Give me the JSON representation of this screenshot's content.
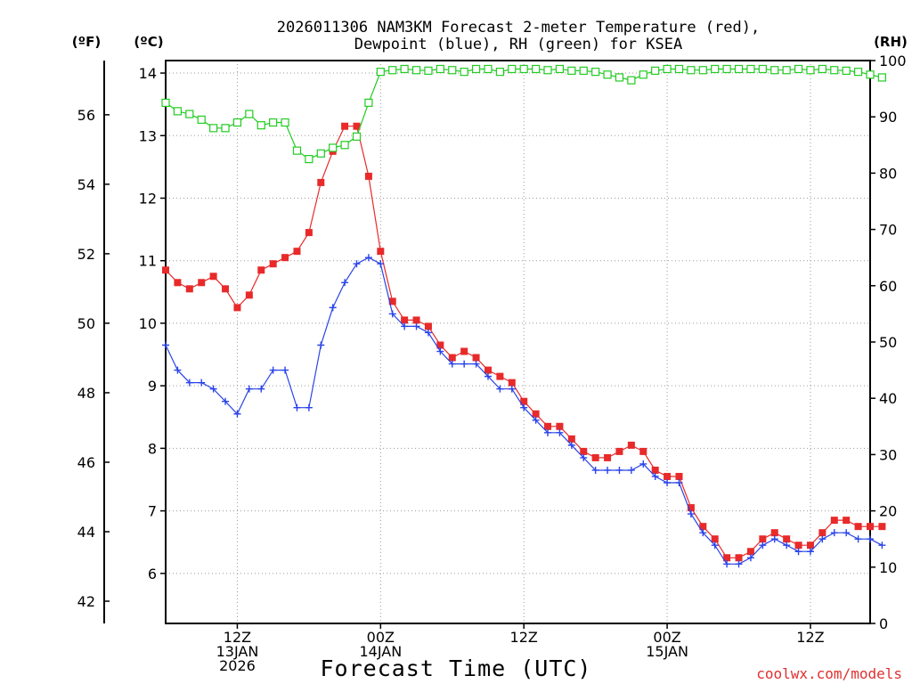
{
  "chart_data": {
    "type": "line",
    "title_lines": [
      "2026011306 NAM3KM Forecast 2-meter Temperature (red),",
      "Dewpoint (blue), RH (green) for KSEA"
    ],
    "xlabel": "Forecast Time (UTC)",
    "credit": "coolwx.com/models",
    "units": {
      "f": "(ºF)",
      "c": "(ºC)",
      "rh": "(RH)"
    },
    "x_start_hour": 6,
    "x_end_hour": 65,
    "x_ticks": [
      {
        "hour": 12,
        "lines": [
          "12Z",
          "13JAN",
          "2026"
        ]
      },
      {
        "hour": 24,
        "lines": [
          "00Z",
          "14JAN"
        ]
      },
      {
        "hour": 36,
        "lines": [
          "12Z"
        ]
      },
      {
        "hour": 48,
        "lines": [
          "00Z",
          "15JAN"
        ]
      },
      {
        "hour": 60,
        "lines": [
          "12Z"
        ]
      }
    ],
    "y_celsius": {
      "min": 5.2,
      "max": 14.2,
      "ticks": [
        6,
        7,
        8,
        9,
        10,
        11,
        12,
        13,
        14
      ]
    },
    "y_fahrenheit": {
      "ticks": [
        42,
        44,
        46,
        48,
        50,
        52,
        54,
        56
      ]
    },
    "y_rh": {
      "min": 0,
      "max": 100,
      "ticks": [
        0,
        10,
        20,
        30,
        40,
        50,
        60,
        70,
        80,
        90,
        100
      ]
    },
    "series": [
      {
        "name": "Temperature",
        "unit": "C",
        "color": "#e82a2a",
        "marker": "square-filled",
        "values": [
          10.85,
          10.65,
          10.55,
          10.65,
          10.75,
          10.55,
          10.25,
          10.45,
          10.85,
          10.95,
          11.05,
          11.15,
          11.45,
          12.25,
          12.75,
          13.15,
          13.15,
          12.35,
          11.15,
          10.35,
          10.05,
          10.05,
          9.95,
          9.65,
          9.45,
          9.55,
          9.45,
          9.25,
          9.15,
          9.05,
          8.75,
          8.55,
          8.35,
          8.35,
          8.15,
          7.95,
          7.85,
          7.85,
          7.95,
          8.05,
          7.95,
          7.65,
          7.55,
          7.55,
          7.05,
          6.75,
          6.55,
          6.25,
          6.25,
          6.35,
          6.55,
          6.65,
          6.55,
          6.45,
          6.45,
          6.65,
          6.85,
          6.85,
          6.75,
          6.75,
          6.75
        ]
      },
      {
        "name": "Dewpoint",
        "unit": "C",
        "color": "#2a44e8",
        "marker": "plus",
        "values": [
          9.65,
          9.25,
          9.05,
          9.05,
          8.95,
          8.75,
          8.55,
          8.95,
          8.95,
          9.25,
          9.25,
          8.65,
          8.65,
          9.65,
          10.25,
          10.65,
          10.95,
          11.05,
          10.95,
          10.15,
          9.95,
          9.95,
          9.85,
          9.55,
          9.35,
          9.35,
          9.35,
          9.15,
          8.95,
          8.95,
          8.65,
          8.45,
          8.25,
          8.25,
          8.05,
          7.85,
          7.65,
          7.65,
          7.65,
          7.65,
          7.75,
          7.55,
          7.45,
          7.45,
          6.95,
          6.65,
          6.45,
          6.15,
          6.15,
          6.25,
          6.45,
          6.55,
          6.45,
          6.35,
          6.35,
          6.55,
          6.65,
          6.65,
          6.55,
          6.55,
          6.45
        ]
      },
      {
        "name": "RH",
        "unit": "%",
        "color": "#22cc22",
        "marker": "square-open",
        "values": [
          92.5,
          91,
          90.5,
          89.5,
          88,
          88,
          89,
          90.5,
          88.5,
          89,
          89,
          84,
          82.5,
          83.5,
          84.5,
          85,
          86.5,
          92.5,
          98,
          98.3,
          98.5,
          98.3,
          98.2,
          98.5,
          98.3,
          98,
          98.5,
          98.5,
          98,
          98.5,
          98.5,
          98.5,
          98.3,
          98.5,
          98.2,
          98.2,
          98,
          97.5,
          97,
          96.5,
          97.5,
          98.2,
          98.5,
          98.5,
          98.3,
          98.3,
          98.5,
          98.5,
          98.5,
          98.5,
          98.5,
          98.3,
          98.3,
          98.5,
          98.3,
          98.5,
          98.3,
          98.2,
          98,
          97.5,
          97
        ]
      }
    ]
  }
}
